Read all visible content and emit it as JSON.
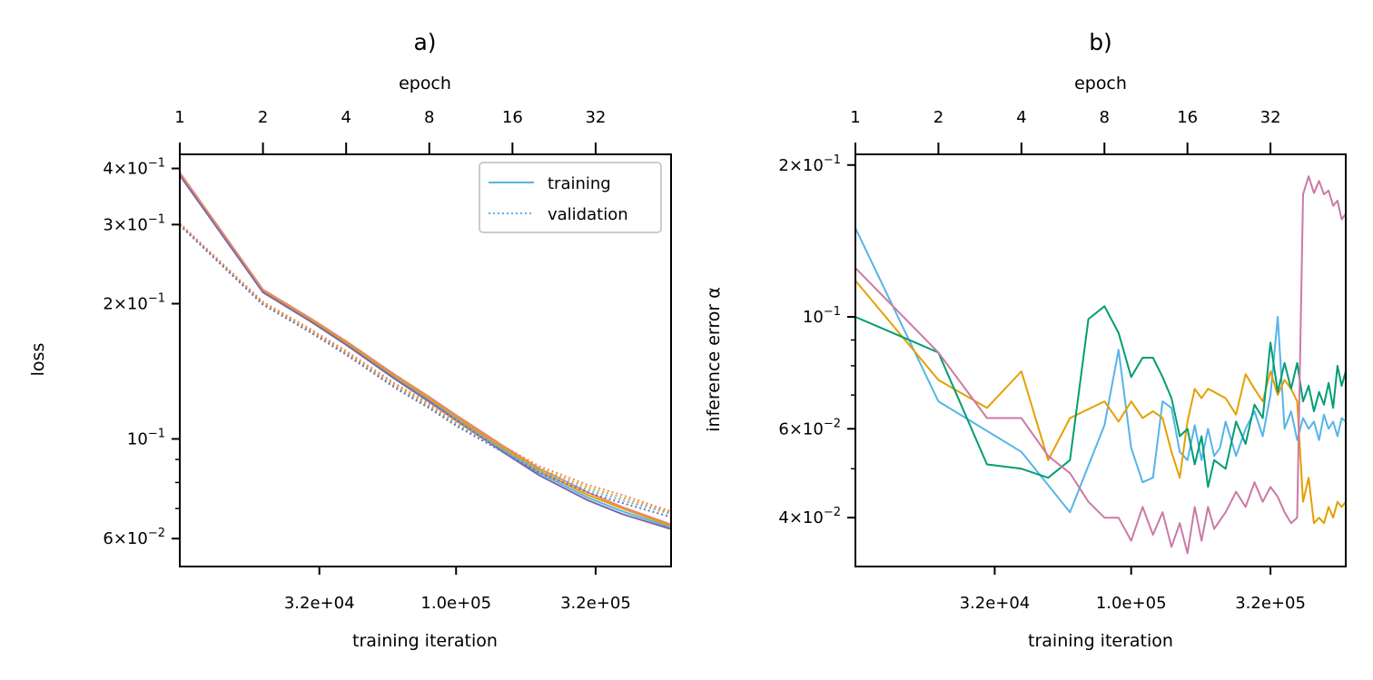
{
  "colors": {
    "blue": "#56b4e9",
    "orange": "#e69f00",
    "green": "#009e73",
    "pink": "#cc79a7",
    "purple": "#7a68a6",
    "salmon": "#e5896e"
  },
  "chart_data": [
    {
      "type": "line",
      "title": "a)",
      "xlabel": "training iteration",
      "ylabel": "loss",
      "top_xlabel": "epoch",
      "xscale": "log",
      "yscale": "log",
      "xlim": [
        10000,
        600000
      ],
      "ylim": [
        0.052,
        0.43
      ],
      "xticks": [
        {
          "value": 32000,
          "label": "3.2e+04"
        },
        {
          "value": 100000,
          "label": "1.0e+05"
        },
        {
          "value": 320000,
          "label": "3.2e+05"
        }
      ],
      "top_xticks": [
        {
          "value": 10000,
          "label": "1"
        },
        {
          "value": 20000,
          "label": "2"
        },
        {
          "value": 40000,
          "label": "4"
        },
        {
          "value": 80000,
          "label": "8"
        },
        {
          "value": 160000,
          "label": "16"
        },
        {
          "value": 320000,
          "label": "32"
        }
      ],
      "yticks": [
        {
          "value": 0.4,
          "base": "4",
          "exp": "−1"
        },
        {
          "value": 0.3,
          "base": "3",
          "exp": "−1"
        },
        {
          "value": 0.2,
          "base": "2",
          "exp": "−1"
        },
        {
          "value": 0.1,
          "base": "",
          "exp": "−1"
        },
        {
          "value": 0.06,
          "base": "6",
          "exp": "−2"
        }
      ],
      "yminor": [
        0.07,
        0.08,
        0.09
      ],
      "legend": {
        "placement": "upper-right",
        "entries": [
          {
            "label": "training",
            "style": "solid"
          },
          {
            "label": "validation",
            "style": "dotted"
          }
        ]
      },
      "series": [
        {
          "style": "solid",
          "color": "#56b4e9",
          "x": [
            10000,
            20000,
            30000,
            40000,
            60000,
            80000,
            100000,
            150000,
            200000,
            300000,
            400000,
            600000
          ],
          "y": [
            0.388,
            0.213,
            0.183,
            0.163,
            0.137,
            0.122,
            0.111,
            0.094,
            0.084,
            0.074,
            0.069,
            0.0635
          ]
        },
        {
          "style": "solid",
          "color": "#e69f00",
          "x": [
            10000,
            20000,
            30000,
            40000,
            60000,
            80000,
            100000,
            150000,
            200000,
            300000,
            400000,
            600000
          ],
          "y": [
            0.39,
            0.214,
            0.184,
            0.164,
            0.138,
            0.123,
            0.112,
            0.095,
            0.085,
            0.075,
            0.07,
            0.064
          ]
        },
        {
          "style": "solid",
          "color": "#7a68a6",
          "x": [
            10000,
            20000,
            30000,
            40000,
            60000,
            80000,
            100000,
            150000,
            200000,
            300000,
            400000,
            600000
          ],
          "y": [
            0.386,
            0.212,
            0.182,
            0.162,
            0.136,
            0.121,
            0.11,
            0.093,
            0.083,
            0.073,
            0.068,
            0.063
          ]
        },
        {
          "style": "solid",
          "color": "#e5896e",
          "x": [
            10000,
            20000,
            30000,
            40000,
            60000,
            80000,
            100000,
            150000,
            200000,
            300000,
            400000,
            600000
          ],
          "y": [
            0.392,
            0.215,
            0.185,
            0.165,
            0.139,
            0.124,
            0.113,
            0.096,
            0.086,
            0.076,
            0.0705,
            0.0645
          ]
        },
        {
          "style": "dotted",
          "color": "#56b4e9",
          "x": [
            10000,
            20000,
            30000,
            40000,
            60000,
            80000,
            100000,
            150000,
            200000,
            300000,
            400000,
            600000
          ],
          "y": [
            0.3,
            0.2,
            0.173,
            0.155,
            0.131,
            0.118,
            0.108,
            0.094,
            0.085,
            0.077,
            0.073,
            0.068
          ]
        },
        {
          "style": "dotted",
          "color": "#e69f00",
          "x": [
            10000,
            20000,
            30000,
            40000,
            60000,
            80000,
            100000,
            150000,
            200000,
            300000,
            400000,
            600000
          ],
          "y": [
            0.301,
            0.201,
            0.174,
            0.156,
            0.132,
            0.119,
            0.109,
            0.095,
            0.086,
            0.078,
            0.074,
            0.0685
          ]
        },
        {
          "style": "dotted",
          "color": "#7a68a6",
          "x": [
            10000,
            20000,
            30000,
            40000,
            60000,
            80000,
            100000,
            150000,
            200000,
            300000,
            400000,
            600000
          ],
          "y": [
            0.299,
            0.199,
            0.172,
            0.154,
            0.13,
            0.117,
            0.107,
            0.093,
            0.084,
            0.076,
            0.072,
            0.067
          ]
        },
        {
          "style": "dotted",
          "color": "#e5896e",
          "x": [
            10000,
            20000,
            30000,
            40000,
            60000,
            80000,
            100000,
            150000,
            200000,
            300000,
            400000,
            600000
          ],
          "y": [
            0.302,
            0.202,
            0.175,
            0.157,
            0.133,
            0.12,
            0.11,
            0.096,
            0.087,
            0.079,
            0.075,
            0.069
          ]
        }
      ]
    },
    {
      "type": "line",
      "title": "b)",
      "xlabel": "training iteration",
      "ylabel": "inference error α",
      "top_xlabel": "epoch",
      "xscale": "log",
      "yscale": "log",
      "xlim": [
        10000,
        600000
      ],
      "ylim": [
        0.032,
        0.21
      ],
      "xticks": [
        {
          "value": 32000,
          "label": "3.2e+04"
        },
        {
          "value": 100000,
          "label": "1.0e+05"
        },
        {
          "value": 320000,
          "label": "3.2e+05"
        }
      ],
      "top_xticks": [
        {
          "value": 10000,
          "label": "1"
        },
        {
          "value": 20000,
          "label": "2"
        },
        {
          "value": 40000,
          "label": "4"
        },
        {
          "value": 80000,
          "label": "8"
        },
        {
          "value": 160000,
          "label": "16"
        },
        {
          "value": 320000,
          "label": "32"
        }
      ],
      "yticks": [
        {
          "value": 0.2,
          "base": "2",
          "exp": "−1"
        },
        {
          "value": 0.1,
          "base": "",
          "exp": "−1"
        },
        {
          "value": 0.06,
          "base": "6",
          "exp": "−2"
        },
        {
          "value": 0.04,
          "base": "4",
          "exp": "−2"
        }
      ],
      "yminor": [
        0.05,
        0.07,
        0.08,
        0.09
      ],
      "series": [
        {
          "color": "#56b4e9",
          "x": [
            10000,
            20000,
            40000,
            60000,
            80000,
            90000,
            100000,
            110000,
            120000,
            130000,
            140000,
            150000,
            160000,
            170000,
            180000,
            190000,
            200000,
            210000,
            220000,
            240000,
            260000,
            280000,
            300000,
            320000,
            340000,
            360000,
            380000,
            400000,
            420000,
            440000,
            460000,
            480000,
            500000,
            520000,
            540000,
            560000,
            580000,
            600000
          ],
          "y": [
            0.15,
            0.068,
            0.054,
            0.041,
            0.061,
            0.086,
            0.055,
            0.047,
            0.048,
            0.068,
            0.066,
            0.054,
            0.052,
            0.061,
            0.052,
            0.06,
            0.053,
            0.055,
            0.062,
            0.053,
            0.06,
            0.065,
            0.058,
            0.07,
            0.1,
            0.06,
            0.065,
            0.057,
            0.063,
            0.06,
            0.062,
            0.057,
            0.064,
            0.06,
            0.062,
            0.058,
            0.063,
            0.062
          ]
        },
        {
          "color": "#e69f00",
          "x": [
            10000,
            20000,
            30000,
            40000,
            50000,
            60000,
            80000,
            90000,
            100000,
            110000,
            120000,
            130000,
            140000,
            150000,
            160000,
            170000,
            180000,
            190000,
            200000,
            220000,
            240000,
            260000,
            280000,
            300000,
            320000,
            340000,
            360000,
            380000,
            400000,
            420000,
            440000,
            460000,
            480000,
            500000,
            520000,
            540000,
            560000,
            580000,
            600000
          ],
          "y": [
            0.118,
            0.075,
            0.066,
            0.078,
            0.052,
            0.063,
            0.068,
            0.062,
            0.068,
            0.063,
            0.065,
            0.063,
            0.054,
            0.048,
            0.062,
            0.072,
            0.069,
            0.072,
            0.071,
            0.069,
            0.064,
            0.077,
            0.072,
            0.068,
            0.078,
            0.07,
            0.075,
            0.072,
            0.068,
            0.043,
            0.048,
            0.039,
            0.04,
            0.039,
            0.042,
            0.04,
            0.043,
            0.042,
            0.043
          ]
        },
        {
          "color": "#009e73",
          "x": [
            10000,
            20000,
            30000,
            40000,
            50000,
            60000,
            70000,
            80000,
            90000,
            100000,
            110000,
            120000,
            130000,
            140000,
            150000,
            160000,
            170000,
            180000,
            190000,
            200000,
            220000,
            240000,
            260000,
            280000,
            300000,
            320000,
            340000,
            360000,
            380000,
            400000,
            420000,
            440000,
            460000,
            480000,
            500000,
            520000,
            540000,
            560000,
            580000,
            600000
          ],
          "y": [
            0.1,
            0.085,
            0.051,
            0.05,
            0.048,
            0.052,
            0.099,
            0.105,
            0.093,
            0.076,
            0.083,
            0.083,
            0.076,
            0.069,
            0.058,
            0.06,
            0.051,
            0.058,
            0.046,
            0.052,
            0.05,
            0.062,
            0.056,
            0.067,
            0.063,
            0.089,
            0.071,
            0.081,
            0.072,
            0.081,
            0.068,
            0.073,
            0.065,
            0.071,
            0.067,
            0.074,
            0.066,
            0.08,
            0.073,
            0.078
          ]
        },
        {
          "color": "#cc79a7",
          "x": [
            10000,
            20000,
            30000,
            40000,
            50000,
            60000,
            70000,
            80000,
            90000,
            100000,
            110000,
            120000,
            130000,
            140000,
            150000,
            160000,
            170000,
            180000,
            190000,
            200000,
            220000,
            240000,
            260000,
            280000,
            300000,
            320000,
            340000,
            360000,
            380000,
            400000,
            420000,
            440000,
            460000,
            480000,
            500000,
            520000,
            540000,
            560000,
            580000,
            600000
          ],
          "y": [
            0.125,
            0.085,
            0.063,
            0.063,
            0.053,
            0.049,
            0.043,
            0.04,
            0.04,
            0.036,
            0.042,
            0.037,
            0.041,
            0.035,
            0.039,
            0.034,
            0.042,
            0.036,
            0.042,
            0.038,
            0.041,
            0.045,
            0.042,
            0.047,
            0.043,
            0.046,
            0.044,
            0.041,
            0.039,
            0.04,
            0.175,
            0.19,
            0.176,
            0.186,
            0.175,
            0.178,
            0.166,
            0.17,
            0.156,
            0.16
          ]
        }
      ]
    }
  ]
}
